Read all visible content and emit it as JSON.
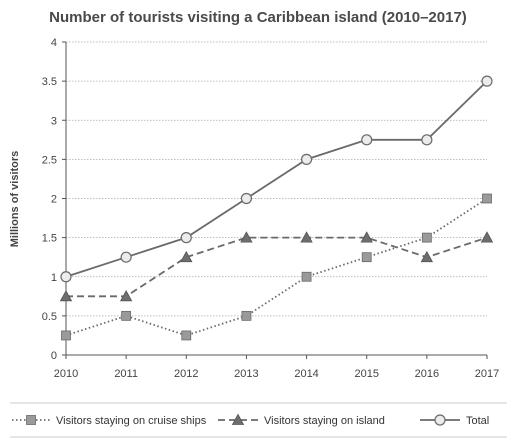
{
  "chart_data": {
    "type": "line",
    "title": "Number of tourists visiting a Caribbean island (2010–2017)",
    "xlabel": "",
    "ylabel": "Millions of visitors",
    "x": [
      "2010",
      "2011",
      "2012",
      "2013",
      "2014",
      "2015",
      "2016",
      "2017"
    ],
    "ylim": [
      0,
      4
    ],
    "yticks": [
      "0",
      "0.5",
      "1",
      "1.5",
      "2",
      "2.5",
      "3",
      "3.5",
      "4"
    ],
    "grid": true,
    "legend_position": "bottom",
    "series": [
      {
        "name": "Visitors staying on cruise ships",
        "values": [
          0.25,
          0.5,
          0.25,
          0.5,
          1.0,
          1.25,
          1.5,
          2.0
        ],
        "marker": "square",
        "line_style": "dotted"
      },
      {
        "name": "Visitors staying on island",
        "values": [
          0.75,
          0.75,
          1.25,
          1.5,
          1.5,
          1.5,
          1.25,
          1.5
        ],
        "marker": "triangle",
        "line_style": "dashed"
      },
      {
        "name": "Total",
        "values": [
          1.0,
          1.25,
          1.5,
          2.0,
          2.5,
          2.75,
          2.75,
          3.5
        ],
        "marker": "circle",
        "line_style": "solid"
      }
    ]
  }
}
